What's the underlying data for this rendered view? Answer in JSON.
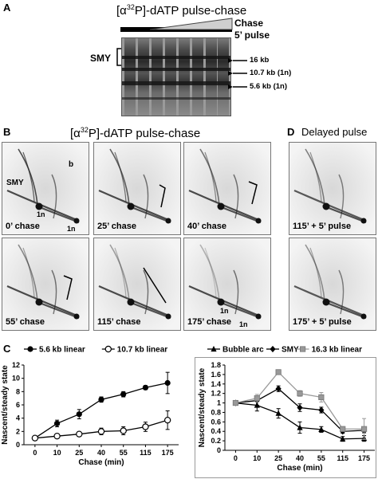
{
  "panel_A": {
    "label": "A",
    "title": "[α32P]-dATP pulse-chase",
    "chase_label": "Chase",
    "pulse_label": "5’ pulse",
    "smy_label": "SMY",
    "bands": [
      "16 kb",
      "10.7 kb (1n)",
      "5.6 kb (1n)"
    ]
  },
  "panel_B": {
    "label": "B",
    "title": "[α32P]-dATP pulse-chase",
    "annotations": {
      "smy": "SMY",
      "b": "b",
      "one_n": "1n"
    },
    "captions": [
      "0’ chase",
      "25’ chase",
      "40’ chase",
      "55’ chase",
      "115’ chase",
      "175’ chase"
    ]
  },
  "panel_D": {
    "label": "D",
    "title": "Delayed pulse",
    "captions": [
      "115’ + 5’ pulse",
      "175’ + 5’ pulse"
    ]
  },
  "panel_C": {
    "label": "C"
  },
  "chart_data": [
    {
      "type": "line",
      "x": [
        "0",
        "10",
        "25",
        "40",
        "55",
        "115",
        "175"
      ],
      "xlabel": "Chase (min)",
      "ylabel": "Nascent/steady state",
      "ylim": [
        0,
        12
      ],
      "yticks": [
        0,
        2,
        4,
        6,
        8,
        10,
        12
      ],
      "legend_position": "top",
      "series": [
        {
          "name": "5.6 kb linear",
          "marker": "filled-circle",
          "values": [
            1.0,
            3.2,
            4.6,
            6.8,
            7.6,
            8.6,
            9.3
          ],
          "errors": [
            0.2,
            0.5,
            0.7,
            0.4,
            0.4,
            0.3,
            1.6
          ]
        },
        {
          "name": "10.7 kb linear",
          "marker": "open-circle",
          "values": [
            1.0,
            1.3,
            1.6,
            2.0,
            2.1,
            2.7,
            3.7
          ],
          "errors": [
            0.1,
            0.2,
            0.2,
            0.5,
            0.6,
            0.7,
            1.4
          ]
        }
      ]
    },
    {
      "type": "line",
      "x": [
        "0",
        "10",
        "25",
        "40",
        "55",
        "115",
        "175"
      ],
      "xlabel": "Chase (min)",
      "ylabel": "Nascent/steady state",
      "ylim": [
        0,
        1.8
      ],
      "yticks": [
        0,
        0.2,
        0.4,
        0.6,
        0.8,
        1,
        1.2,
        1.4,
        1.6,
        1.8
      ],
      "legend_position": "top",
      "series": [
        {
          "name": "Bubble arc",
          "marker": "filled-triangle",
          "color": "#000000",
          "values": [
            1.0,
            0.95,
            0.78,
            0.48,
            0.44,
            0.24,
            0.25
          ],
          "errors": [
            0.02,
            0.12,
            0.1,
            0.12,
            0.06,
            0.05,
            0.06
          ]
        },
        {
          "name": "SMY",
          "marker": "filled-diamond",
          "color": "#000000",
          "values": [
            1.0,
            1.05,
            1.3,
            0.9,
            0.85,
            0.4,
            0.42
          ],
          "errors": [
            0.02,
            0.1,
            0.06,
            0.08,
            0.06,
            0.04,
            0.05
          ]
        },
        {
          "name": "16.3 kb linear",
          "marker": "filled-square",
          "color": "#999999",
          "values": [
            1.0,
            1.1,
            1.65,
            1.2,
            1.12,
            0.45,
            0.45
          ],
          "errors": [
            0.02,
            0.08,
            0.05,
            0.06,
            0.1,
            0.05,
            0.22
          ]
        }
      ]
    }
  ]
}
